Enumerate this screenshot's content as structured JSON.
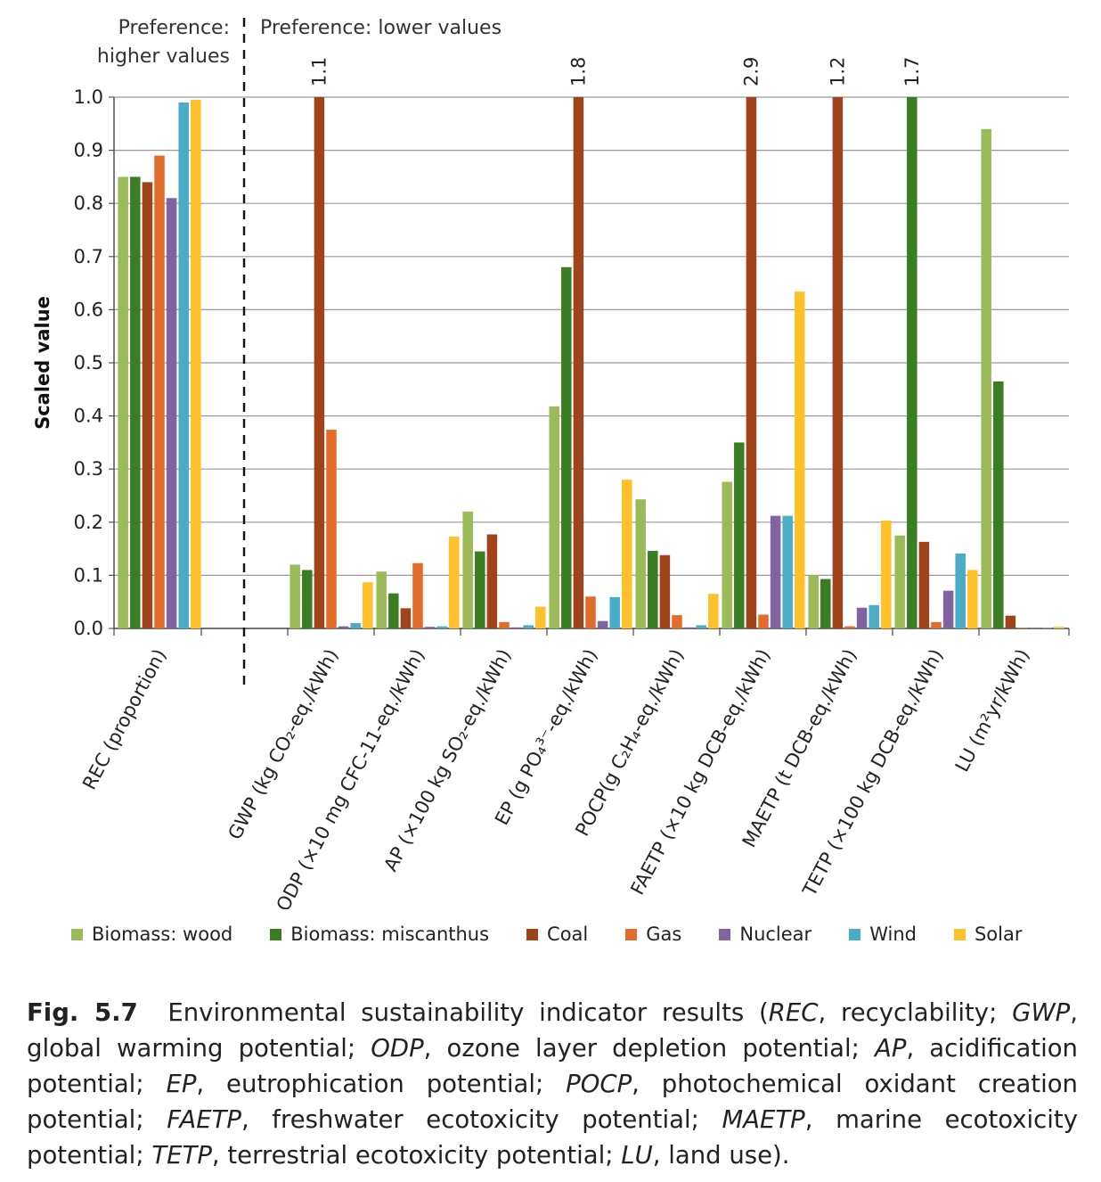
{
  "preference": {
    "higher": [
      "Preference:",
      "higher values"
    ],
    "lower": "Preference: lower values"
  },
  "chart_data": {
    "type": "bar",
    "ylabel": "Scaled value",
    "ylim": [
      0,
      1.0
    ],
    "yticks": [
      "0.0",
      "0.1",
      "0.2",
      "0.3",
      "0.4",
      "0.5",
      "0.6",
      "0.7",
      "0.8",
      "0.9",
      "1.0"
    ],
    "grid": true,
    "legend_position": "bottom",
    "categories": [
      "REC (proportion)",
      "GWP (kg CO₂-eq./kWh)",
      "ODP (×10 mg CFC-11-eq./kWh)",
      "AP (×100 kg SO₂-eq./kWh)",
      "EP (g PO₄³⁻-eq./kWh)",
      "POCP(g C₂H₄-eq./kWh)",
      "FAETP (×10 kg DCB-eq./kWh)",
      "MAETP (t DCB-eq./kWh)",
      "TETP (×100 kg DCB-eq./kWh)",
      "LU (m²yr/kWh)"
    ],
    "series": [
      {
        "name": "Biomass: wood",
        "color": "#9bbb59",
        "values": [
          0.85,
          0.12,
          0.107,
          0.22,
          0.418,
          0.243,
          0.276,
          0.1,
          0.175,
          0.94
        ]
      },
      {
        "name": "Biomass: miscanthus",
        "color": "#3a7d22",
        "values": [
          0.85,
          0.11,
          0.066,
          0.145,
          0.68,
          0.146,
          0.35,
          0.093,
          1.0,
          0.465
        ]
      },
      {
        "name": "Coal",
        "color": "#a0431a",
        "values": [
          0.84,
          1.0,
          0.038,
          0.177,
          1.0,
          0.138,
          1.0,
          1.0,
          0.163,
          0.024
        ]
      },
      {
        "name": "Gas",
        "color": "#e46c2a",
        "values": [
          0.89,
          0.374,
          0.123,
          0.012,
          0.06,
          0.025,
          0.026,
          0.004,
          0.012,
          0.0
        ]
      },
      {
        "name": "Nuclear",
        "color": "#8064a2",
        "values": [
          0.81,
          0.004,
          0.003,
          0.002,
          0.014,
          0.002,
          0.212,
          0.039,
          0.071,
          0.0
        ]
      },
      {
        "name": "Wind",
        "color": "#4aacc6",
        "values": [
          0.99,
          0.01,
          0.004,
          0.006,
          0.059,
          0.006,
          0.212,
          0.044,
          0.141,
          0.0
        ]
      },
      {
        "name": "Solar",
        "color": "#ffc02a",
        "values": [
          0.995,
          0.087,
          0.173,
          0.041,
          0.28,
          0.065,
          0.634,
          0.203,
          0.11,
          0.003
        ]
      }
    ],
    "annotations": [
      {
        "category": 1,
        "series": 2,
        "text": "1.1"
      },
      {
        "category": 4,
        "series": 2,
        "text": "1.8"
      },
      {
        "category": 6,
        "series": 2,
        "text": "2.9"
      },
      {
        "category": 7,
        "series": 2,
        "text": "1.2"
      },
      {
        "category": 8,
        "series": 1,
        "text": "1.7"
      }
    ]
  },
  "caption": {
    "label": "Fig. 5.7",
    "intro": "Environmental sustainability indicator results (",
    "definitions": [
      {
        "abbr": "REC",
        "text": ", recyclability; "
      },
      {
        "abbr": "GWP",
        "text": ", global warming potential; "
      },
      {
        "abbr": "ODP",
        "text": ", ozone layer depletion potential; "
      },
      {
        "abbr": "AP",
        "text": ", acidification potential; "
      },
      {
        "abbr": "EP",
        "text": ", eutrophication potential; "
      },
      {
        "abbr": "POCP",
        "text": ", photochemical oxidant creation potential; "
      },
      {
        "abbr": "FAETP",
        "text": ", freshwater ecotoxicity potential; "
      },
      {
        "abbr": "MAETP",
        "text": ", marine ecotoxicity potential; "
      },
      {
        "abbr": "TETP",
        "text": ", terrestrial ecotoxicity potential; "
      },
      {
        "abbr": "LU",
        "text": ", land use)."
      }
    ]
  }
}
